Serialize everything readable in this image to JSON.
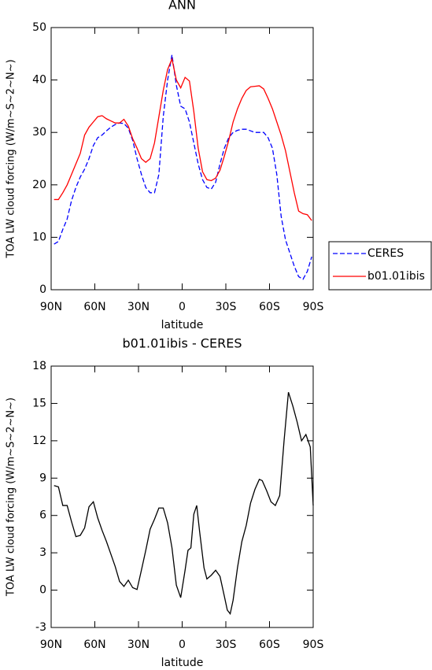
{
  "chart_data": [
    {
      "type": "line",
      "title": "ANN",
      "xlabel": "latitude",
      "ylabel": "TOA LW cloud forcing (W/m~S~2~N~)",
      "x": [
        88,
        85,
        82,
        79,
        76,
        73,
        70,
        67,
        64,
        61,
        58,
        55,
        52,
        49,
        46,
        43,
        40,
        37,
        34,
        31,
        28,
        25,
        22,
        19,
        16,
        13,
        10,
        7,
        4,
        1,
        -2,
        -5,
        -8,
        -11,
        -14,
        -17,
        -20,
        -23,
        -26,
        -29,
        -32,
        -35,
        -38,
        -41,
        -44,
        -47,
        -50,
        -53,
        -56,
        -59,
        -62,
        -65,
        -68,
        -71,
        -74,
        -77,
        -80,
        -83,
        -86,
        -89
      ],
      "series": [
        {
          "name": "CERES",
          "color": "#0000ff",
          "linestyle": "dashed",
          "values": [
            8.7,
            9.2,
            11.5,
            13.5,
            17,
            19.5,
            21.5,
            23,
            25,
            27.5,
            29,
            29.5,
            30.3,
            31,
            31.5,
            31.8,
            31.7,
            30.8,
            28.5,
            25,
            22,
            19.5,
            18.5,
            18.5,
            22,
            33,
            40,
            44.8,
            39,
            35,
            34.5,
            32,
            28,
            24,
            21,
            19.5,
            19.2,
            20.5,
            24,
            27,
            29,
            30,
            30.4,
            30.6,
            30.6,
            30.3,
            30,
            30,
            30,
            29,
            27,
            22,
            14,
            9.5,
            7,
            4.5,
            2.5,
            2,
            3.5,
            6.3
          ]
        },
        {
          "name": "b01.01ibis",
          "color": "#ff0000",
          "linestyle": "solid",
          "values": [
            17.2,
            17.2,
            18.5,
            20,
            22,
            24,
            26,
            29.5,
            31,
            32,
            33,
            33.2,
            32.6,
            32.2,
            31.8,
            31.8,
            32.5,
            31.2,
            28.8,
            27,
            25,
            24.3,
            25,
            28,
            33,
            38,
            42,
            44,
            40,
            38.5,
            40.5,
            39.8,
            34,
            27,
            22.5,
            21,
            20.8,
            21.3,
            22.8,
            25.5,
            28.5,
            32,
            34.5,
            36.5,
            38,
            38.7,
            38.8,
            38.9,
            38.3,
            36.5,
            34.5,
            32,
            29.5,
            26.5,
            22.5,
            18.5,
            15,
            14.5,
            14.3,
            13.2
          ]
        }
      ],
      "xlim": [
        90,
        -90
      ],
      "xticks": [
        {
          "value": 90,
          "label": "90N"
        },
        {
          "value": 60,
          "label": "60N"
        },
        {
          "value": 30,
          "label": "30N"
        },
        0,
        {
          "value": -30,
          "label": "30S"
        },
        {
          "value": -60,
          "label": "60S"
        },
        {
          "value": -90,
          "label": "90S"
        }
      ],
      "ylim": [
        0,
        50
      ],
      "yticks": [
        0,
        10,
        20,
        30,
        40,
        50
      ],
      "legend": "right"
    },
    {
      "type": "line",
      "title": "b01.01ibis - CERES",
      "xlabel": "latitude",
      "ylabel": "TOA LW cloud forcing (W/m~S~2~N~)",
      "x": [
        88,
        85,
        82,
        79,
        76,
        73,
        70,
        67,
        64,
        61,
        58,
        55,
        52,
        49,
        46,
        43,
        40,
        37,
        34,
        31,
        28,
        25,
        22,
        19,
        16,
        13,
        10,
        7,
        4,
        1,
        -2,
        -4,
        -6,
        -8,
        -10,
        -12,
        -15,
        -17,
        -20,
        -23,
        -26,
        -29,
        -31,
        -33,
        -35,
        -38,
        -41,
        -44,
        -47,
        -50,
        -53,
        -55,
        -58,
        -61,
        -64,
        -67,
        -70,
        -73,
        -76,
        -79,
        -82,
        -85,
        -88,
        -90
      ],
      "series": [
        {
          "color": "#000000",
          "linestyle": "solid",
          "values": [
            8.4,
            8.3,
            6.8,
            6.8,
            5.5,
            4.3,
            4.4,
            5,
            6.7,
            7.1,
            5.8,
            4.8,
            3.9,
            2.9,
            1.9,
            0.7,
            0.3,
            0.8,
            0.2,
            0.05,
            1.6,
            3.2,
            4.9,
            5.7,
            6.6,
            6.6,
            5.4,
            3.4,
            0.4,
            -0.6,
            1.6,
            3.2,
            3.4,
            6.1,
            6.8,
            4.7,
            1.8,
            0.9,
            1.2,
            1.6,
            1.1,
            -0.5,
            -1.6,
            -1.9,
            -0.8,
            1.8,
            3.9,
            5.2,
            7,
            8.1,
            8.9,
            8.8,
            8,
            7.1,
            6.8,
            7.6,
            12,
            15.9,
            14.8,
            13.5,
            12,
            12.5,
            11.5,
            6.8
          ]
        }
      ],
      "xlim": [
        90,
        -90
      ],
      "xticks": [
        {
          "value": 90,
          "label": "90N"
        },
        {
          "value": 60,
          "label": "60N"
        },
        {
          "value": 30,
          "label": "30N"
        },
        0,
        {
          "value": -30,
          "label": "30S"
        },
        {
          "value": -60,
          "label": "60S"
        },
        {
          "value": -90,
          "label": "90S"
        }
      ],
      "ylim": [
        -3,
        18
      ],
      "yticks": [
        -3,
        0,
        3,
        6,
        9,
        12,
        15,
        18
      ]
    }
  ]
}
